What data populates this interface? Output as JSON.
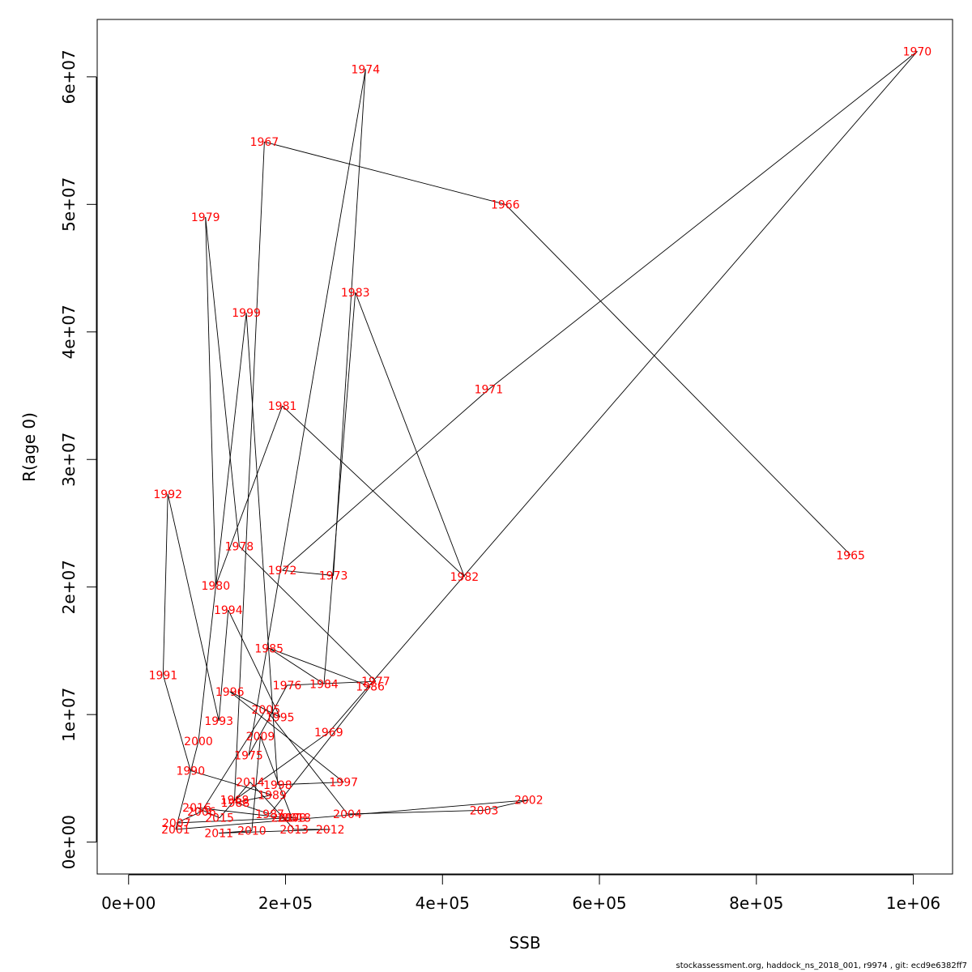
{
  "chart_data": {
    "type": "scatter",
    "connected": true,
    "xlabel": "SSB",
    "ylabel": "R(age 0)",
    "xlim": [
      -40000,
      1050000
    ],
    "ylim": [
      -2500000,
      64500000
    ],
    "x_ticks": [
      0,
      200000,
      400000,
      600000,
      800000,
      1000000
    ],
    "x_tick_labels": [
      "0e+00",
      "2e+05",
      "4e+05",
      "6e+05",
      "8e+05",
      "1e+06"
    ],
    "y_ticks": [
      0,
      10000000,
      20000000,
      30000000,
      40000000,
      50000000,
      60000000
    ],
    "y_tick_labels": [
      "0e+00",
      "1e+07",
      "2e+07",
      "3e+07",
      "4e+07",
      "5e+07",
      "6e+07"
    ],
    "grid": false,
    "colors": {
      "line": "#000000",
      "labels": "#ff0000",
      "frame": "#000000"
    },
    "points": [
      {
        "year": "1965",
        "ssb": 920000,
        "r": 22500000
      },
      {
        "year": "1966",
        "ssb": 480000,
        "r": 50000000
      },
      {
        "year": "1967",
        "ssb": 173000,
        "r": 54900000
      },
      {
        "year": "1968",
        "ssb": 135000,
        "r": 3300000
      },
      {
        "year": "1969",
        "ssb": 255000,
        "r": 8600000
      },
      {
        "year": "1970",
        "ssb": 1005000,
        "r": 62000000
      },
      {
        "year": "1971",
        "ssb": 459000,
        "r": 35500000
      },
      {
        "year": "1972",
        "ssb": 196000,
        "r": 21300000
      },
      {
        "year": "1973",
        "ssb": 261000,
        "r": 20900000
      },
      {
        "year": "1974",
        "ssb": 302000,
        "r": 60600000
      },
      {
        "year": "1975",
        "ssb": 153000,
        "r": 6800000
      },
      {
        "year": "1976",
        "ssb": 202000,
        "r": 12300000
      },
      {
        "year": "1977",
        "ssb": 315000,
        "r": 12600000
      },
      {
        "year": "1978",
        "ssb": 141000,
        "r": 23200000
      },
      {
        "year": "1979",
        "ssb": 98000,
        "r": 49000000
      },
      {
        "year": "1980",
        "ssb": 111000,
        "r": 20100000
      },
      {
        "year": "1981",
        "ssb": 196000,
        "r": 34200000
      },
      {
        "year": "1982",
        "ssb": 428000,
        "r": 20800000
      },
      {
        "year": "1983",
        "ssb": 289000,
        "r": 43100000
      },
      {
        "year": "1984",
        "ssb": 249000,
        "r": 12400000
      },
      {
        "year": "1985",
        "ssb": 179000,
        "r": 15200000
      },
      {
        "year": "1986",
        "ssb": 308000,
        "r": 12200000
      },
      {
        "year": "1987",
        "ssb": 180000,
        "r": 2200000
      },
      {
        "year": "1988",
        "ssb": 136000,
        "r": 3100000
      },
      {
        "year": "1989",
        "ssb": 183000,
        "r": 3700000
      },
      {
        "year": "1990",
        "ssb": 79000,
        "r": 5600000
      },
      {
        "year": "1991",
        "ssb": 44000,
        "r": 13100000
      },
      {
        "year": "1992",
        "ssb": 50000,
        "r": 27300000
      },
      {
        "year": "1993",
        "ssb": 115000,
        "r": 9500000
      },
      {
        "year": "1994",
        "ssb": 127000,
        "r": 18200000
      },
      {
        "year": "1995",
        "ssb": 193000,
        "r": 9800000
      },
      {
        "year": "1996",
        "ssb": 129000,
        "r": 11800000
      },
      {
        "year": "1997",
        "ssb": 274000,
        "r": 4700000
      },
      {
        "year": "1998",
        "ssb": 190000,
        "r": 4500000
      },
      {
        "year": "1999",
        "ssb": 150000,
        "r": 41500000
      },
      {
        "year": "2000",
        "ssb": 89000,
        "r": 7900000
      },
      {
        "year": "2001",
        "ssb": 60000,
        "r": 1000000
      },
      {
        "year": "2002",
        "ssb": 510000,
        "r": 3300000
      },
      {
        "year": "2003",
        "ssb": 453000,
        "r": 2500000
      },
      {
        "year": "2004",
        "ssb": 279000,
        "r": 2200000
      },
      {
        "year": "2005",
        "ssb": 175000,
        "r": 10400000
      },
      {
        "year": "2006",
        "ssb": 93000,
        "r": 2400000
      },
      {
        "year": "2007",
        "ssb": 61000,
        "r": 1500000
      },
      {
        "year": "2008",
        "ssb": 208000,
        "r": 1900000
      },
      {
        "year": "2009",
        "ssb": 168000,
        "r": 8300000
      },
      {
        "year": "2010",
        "ssb": 157000,
        "r": 900000
      },
      {
        "year": "2011",
        "ssb": 115000,
        "r": 700000
      },
      {
        "year": "2012",
        "ssb": 257000,
        "r": 1000000
      },
      {
        "year": "2013",
        "ssb": 211000,
        "r": 1000000
      },
      {
        "year": "2014",
        "ssb": 155000,
        "r": 4700000
      },
      {
        "year": "2015",
        "ssb": 116000,
        "r": 1900000
      },
      {
        "year": "2016",
        "ssb": 87000,
        "r": 2700000
      },
      {
        "year": "2017",
        "ssb": 200000,
        "r": 1900000
      },
      {
        "year": "2018",
        "ssb": 214000,
        "r": 1900000
      }
    ]
  },
  "footer": {
    "text": "stockassessment.org, haddock_ns_2018_001, r9974 , git: ecd9e6382ff7"
  }
}
